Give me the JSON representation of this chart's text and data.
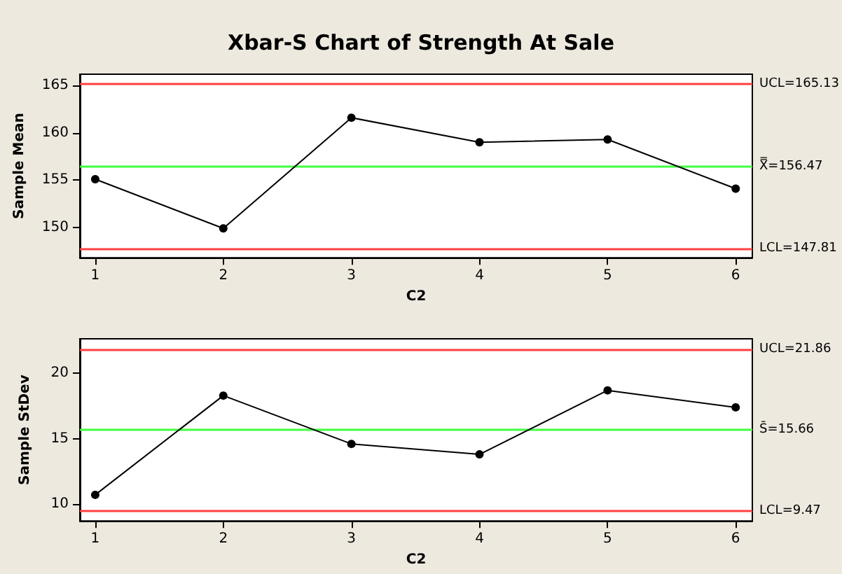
{
  "chart_data": [
    {
      "type": "line",
      "title": "Xbar-S Chart of Strength At Sale",
      "xlabel": "C2",
      "ylabel": "Sample Mean",
      "x": [
        1,
        2,
        3,
        4,
        5,
        6
      ],
      "series": [
        {
          "color": "#000000",
          "values": [
            155.1,
            149.9,
            161.6,
            159.0,
            159.3,
            154.1
          ]
        }
      ],
      "xlim": [
        0.88,
        6.13
      ],
      "xticks": [
        1,
        2,
        3,
        4,
        5,
        6
      ],
      "ylim": [
        146.8,
        166.2
      ],
      "yticks": [
        150,
        155,
        160,
        165
      ],
      "grid": false,
      "marker": "circle",
      "line_style": "solid",
      "ref_lines": [
        {
          "axis": "y",
          "value": 165.13,
          "label": "UCL=165.13",
          "color": "#ff4040"
        },
        {
          "axis": "y",
          "value": 156.47,
          "label": "X̿=156.47",
          "color": "#40ff40"
        },
        {
          "axis": "y",
          "value": 147.81,
          "label": "LCL=147.81",
          "color": "#ff4040"
        }
      ]
    },
    {
      "type": "line",
      "xlabel": "C2",
      "ylabel": "Sample StDev",
      "x": [
        1,
        2,
        3,
        4,
        5,
        6
      ],
      "series": [
        {
          "color": "#000000",
          "values": [
            10.7,
            18.3,
            14.6,
            13.8,
            18.7,
            17.4
          ]
        }
      ],
      "xlim": [
        0.88,
        6.13
      ],
      "xticks": [
        1,
        2,
        3,
        4,
        5,
        6
      ],
      "ylim": [
        8.7,
        22.65
      ],
      "yticks": [
        10,
        15,
        20
      ],
      "grid": false,
      "marker": "circle",
      "line_style": "solid",
      "ref_lines": [
        {
          "axis": "y",
          "value": 21.86,
          "label": "UCL=21.86",
          "color": "#ff4040"
        },
        {
          "axis": "y",
          "value": 15.66,
          "label": "S̄=15.66",
          "color": "#40ff40"
        },
        {
          "axis": "y",
          "value": 9.47,
          "label": "LCL=9.47",
          "color": "#ff4040"
        }
      ]
    }
  ]
}
